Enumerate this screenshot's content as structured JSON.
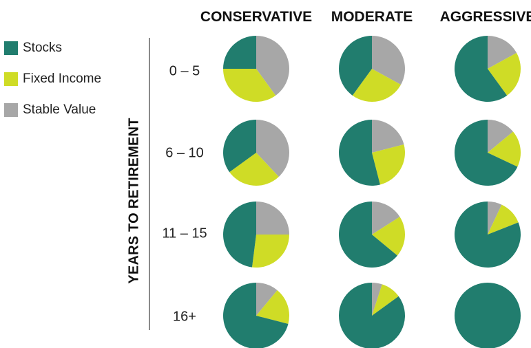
{
  "legend": [
    {
      "name": "Stocks",
      "color": "#217d6e"
    },
    {
      "name": "Fixed Income",
      "color": "#cfdc26"
    },
    {
      "name": "Stable Value",
      "color": "#a7a7a7"
    }
  ],
  "chart_data": {
    "type": "pie",
    "title": "",
    "row_axis_label": "YEARS TO RETIREMENT",
    "columns": [
      "CONSERVATIVE",
      "MODERATE",
      "AGGRESSIVE"
    ],
    "rows": [
      "0 – 5",
      "6 – 10",
      "11 – 15",
      "16+"
    ],
    "series_names": [
      "Stocks",
      "Fixed Income",
      "Stable Value"
    ],
    "cells": [
      {
        "row": "0 – 5",
        "column": "CONSERVATIVE",
        "values": [
          25,
          35,
          40
        ]
      },
      {
        "row": "0 – 5",
        "column": "MODERATE",
        "values": [
          40,
          27,
          33
        ]
      },
      {
        "row": "0 – 5",
        "column": "AGGRESSIVE",
        "values": [
          60,
          23,
          17
        ]
      },
      {
        "row": "6 – 10",
        "column": "CONSERVATIVE",
        "values": [
          35,
          27,
          38
        ]
      },
      {
        "row": "6 – 10",
        "column": "MODERATE",
        "values": [
          54,
          25,
          21
        ]
      },
      {
        "row": "6 – 10",
        "column": "AGGRESSIVE",
        "values": [
          68,
          18,
          14
        ]
      },
      {
        "row": "11 – 15",
        "column": "CONSERVATIVE",
        "values": [
          48,
          27,
          25
        ]
      },
      {
        "row": "11 – 15",
        "column": "MODERATE",
        "values": [
          64,
          20,
          16
        ]
      },
      {
        "row": "11 – 15",
        "column": "AGGRESSIVE",
        "values": [
          81,
          12,
          7
        ]
      },
      {
        "row": "16+",
        "column": "CONSERVATIVE",
        "values": [
          71,
          18,
          11
        ]
      },
      {
        "row": "16+",
        "column": "MODERATE",
        "values": [
          85,
          10,
          5
        ]
      },
      {
        "row": "16+",
        "column": "AGGRESSIVE",
        "values": [
          100,
          0,
          0
        ]
      }
    ],
    "legend_position": "top-left"
  }
}
